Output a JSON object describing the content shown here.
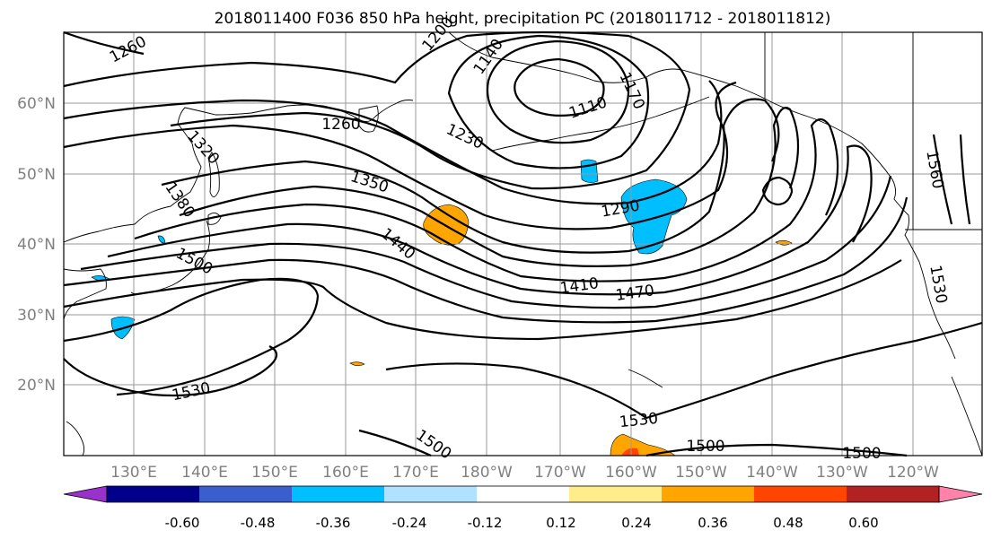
{
  "title": "2018011400 F036 850 hPa height, precipitation PC (2018011712 - 2018011812)",
  "lat_labels": [
    "60°N",
    "50°N",
    "40°N",
    "30°N",
    "20°N"
  ],
  "lon_labels": [
    "130°E",
    "140°E",
    "150°E",
    "160°E",
    "170°E",
    "180°W",
    "170°W",
    "160°W",
    "150°W",
    "140°W",
    "130°W",
    "120°W"
  ],
  "contour_labels": [
    "1260",
    "1200",
    "1140",
    "1170",
    "1110",
    "1230",
    "1320",
    "1260",
    "1350",
    "1380",
    "1290",
    "1440",
    "1500",
    "1410",
    "1470",
    "1530",
    "1530",
    "1500",
    "1500",
    "1500",
    "1530",
    "1560"
  ],
  "colorbar": {
    "tick_labels": [
      "-0.60",
      "-0.48",
      "-0.36",
      "-0.24",
      "-0.12",
      "0.12",
      "0.24",
      "0.36",
      "0.48",
      "0.60"
    ],
    "colors": [
      "#9932cc",
      "#00008b",
      "#3a5fcd",
      "#00bfff",
      "#b0e2ff",
      "#ffffff",
      "#ffec8b",
      "#ffa500",
      "#ff4500",
      "#b22222",
      "#ff82ab"
    ]
  }
}
